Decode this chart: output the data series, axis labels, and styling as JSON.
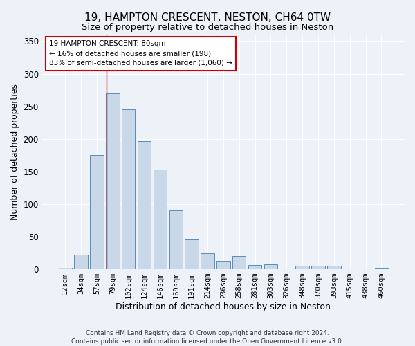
{
  "title": "19, HAMPTON CRESCENT, NESTON, CH64 0TW",
  "subtitle": "Size of property relative to detached houses in Neston",
  "xlabel": "Distribution of detached houses by size in Neston",
  "ylabel": "Number of detached properties",
  "bar_labels": [
    "12sqm",
    "34sqm",
    "57sqm",
    "79sqm",
    "102sqm",
    "124sqm",
    "146sqm",
    "169sqm",
    "191sqm",
    "214sqm",
    "236sqm",
    "258sqm",
    "281sqm",
    "303sqm",
    "326sqm",
    "348sqm",
    "370sqm",
    "393sqm",
    "415sqm",
    "438sqm",
    "460sqm"
  ],
  "bar_values": [
    2,
    22,
    175,
    270,
    245,
    197,
    153,
    90,
    46,
    25,
    13,
    20,
    6,
    8,
    0,
    5,
    5,
    5,
    0,
    0,
    1
  ],
  "bar_color": "#c8d8e8",
  "bar_edge_color": "#5b8db8",
  "bg_color": "#edf2f8",
  "grid_color": "#ffffff",
  "annotation_text": "19 HAMPTON CRESCENT: 80sqm\n← 16% of detached houses are smaller (198)\n83% of semi-detached houses are larger (1,060) →",
  "annotation_box_color": "#ffffff",
  "annotation_box_edge": "#cc0000",
  "red_line_bin": 3,
  "ylim": [
    0,
    360
  ],
  "yticks": [
    0,
    50,
    100,
    150,
    200,
    250,
    300,
    350
  ],
  "footer": "Contains HM Land Registry data © Crown copyright and database right 2024.\nContains public sector information licensed under the Open Government Licence v3.0.",
  "title_fontsize": 11,
  "subtitle_fontsize": 9.5,
  "xlabel_fontsize": 9,
  "ylabel_fontsize": 9,
  "tick_fontsize": 7.5,
  "ytick_fontsize": 8.5,
  "footer_fontsize": 6.5,
  "annotation_fontsize": 7.5
}
